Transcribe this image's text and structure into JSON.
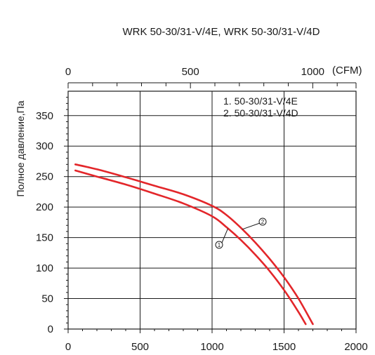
{
  "chart_data": {
    "type": "line",
    "title": "WRK 50-30/31-V/4E, WRK 50-30/31-V/4D",
    "xlabel": "",
    "ylabel": "Полное давление,Па",
    "xlim": [
      0,
      2000
    ],
    "ylim": [
      0,
      390
    ],
    "x_ticks": [
      0,
      500,
      1000,
      1500,
      2000
    ],
    "y_ticks": [
      0,
      50,
      100,
      150,
      200,
      250,
      300,
      350
    ],
    "top_axis": {
      "unit": "(CFM)",
      "tick_labels": [
        "0",
        "500",
        "1000"
      ],
      "range": [
        0,
        1177
      ]
    },
    "grid": true,
    "legend": {
      "placement": "top-right",
      "entries": [
        "1. 50-30/31-V/4E",
        "2. 50-30/31-V/4D"
      ]
    },
    "series": [
      {
        "name": "1. 50-30/31-V/4E",
        "marker": "1",
        "color": "#e3262a",
        "x": [
          50,
          200,
          400,
          600,
          800,
          1000,
          1100,
          1200,
          1300,
          1400,
          1500,
          1600,
          1650
        ],
        "y": [
          260,
          250,
          237,
          222,
          206,
          185,
          167,
          146,
          122,
          95,
          64,
          28,
          8
        ]
      },
      {
        "name": "2. 50-30/31-V/4D",
        "marker": "2",
        "color": "#e3262a",
        "x": [
          50,
          200,
          400,
          600,
          800,
          1000,
          1100,
          1200,
          1300,
          1400,
          1500,
          1600,
          1700
        ],
        "y": [
          270,
          262,
          249,
          235,
          221,
          202,
          187,
          166,
          142,
          115,
          85,
          50,
          8
        ]
      }
    ]
  }
}
